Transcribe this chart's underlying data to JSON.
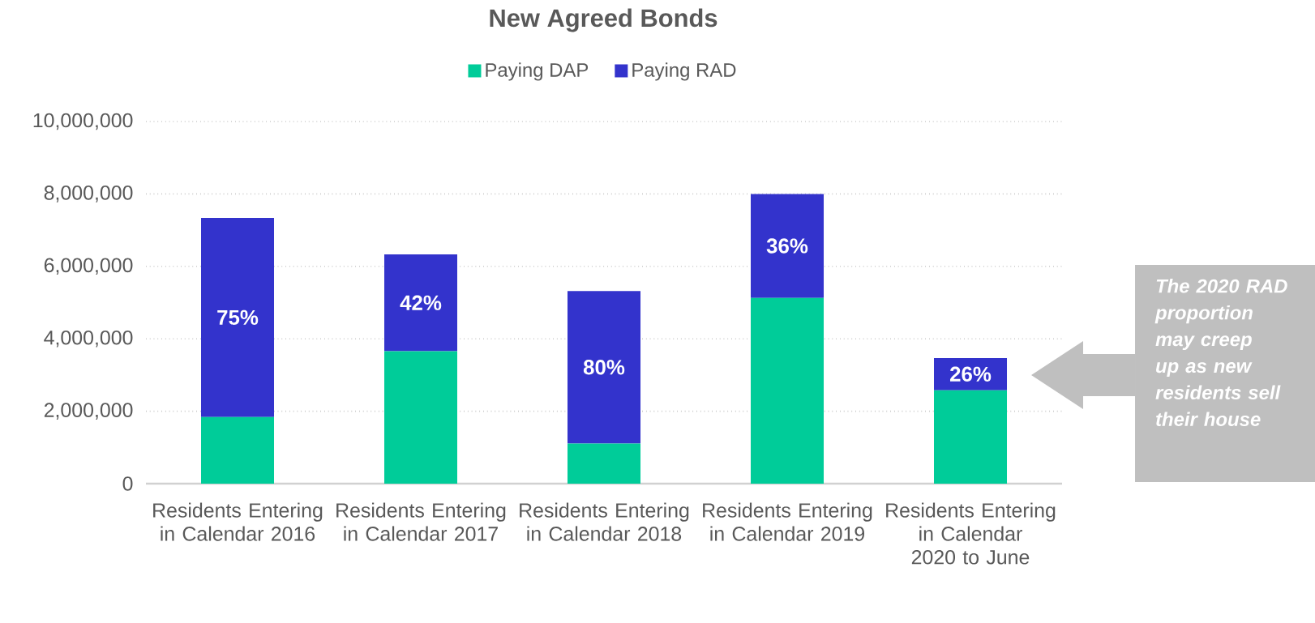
{
  "chart_data": {
    "type": "bar",
    "stacked": true,
    "title": "New Agreed Bonds",
    "categories": [
      "Residents Entering in Calendar 2016",
      "Residents Entering in Calendar 2017",
      "Residents Entering in Calendar 2018",
      "Residents Entering in Calendar 2019",
      "Residents Entering in Calendar 2020 to June"
    ],
    "series": [
      {
        "name": "Paying DAP",
        "color": "#00cc99",
        "values": [
          1840000,
          3660000,
          1110000,
          5130000,
          2580000
        ]
      },
      {
        "name": "Paying RAD",
        "color": "#3333cc",
        "values": [
          5500000,
          2670000,
          4210000,
          2870000,
          890000
        ]
      }
    ],
    "ylim": [
      0,
      10000000
    ],
    "yticks": [
      0,
      {
        "value": 2000000,
        "label": "2,000,000"
      },
      {
        "value": 4000000,
        "label": "4,000,000"
      },
      {
        "value": 6000000,
        "label": "6,000,000"
      },
      {
        "value": 8000000,
        "label": "8,000,000"
      },
      {
        "value": 10000000,
        "label": "10,000,000"
      }
    ],
    "grid": "y",
    "legend": "top",
    "annotations": [
      "75%",
      "42%",
      "80%",
      "36%",
      "26%",
      "The 2020 RAD proportion may creep up as new residents sell their house"
    ]
  }
}
